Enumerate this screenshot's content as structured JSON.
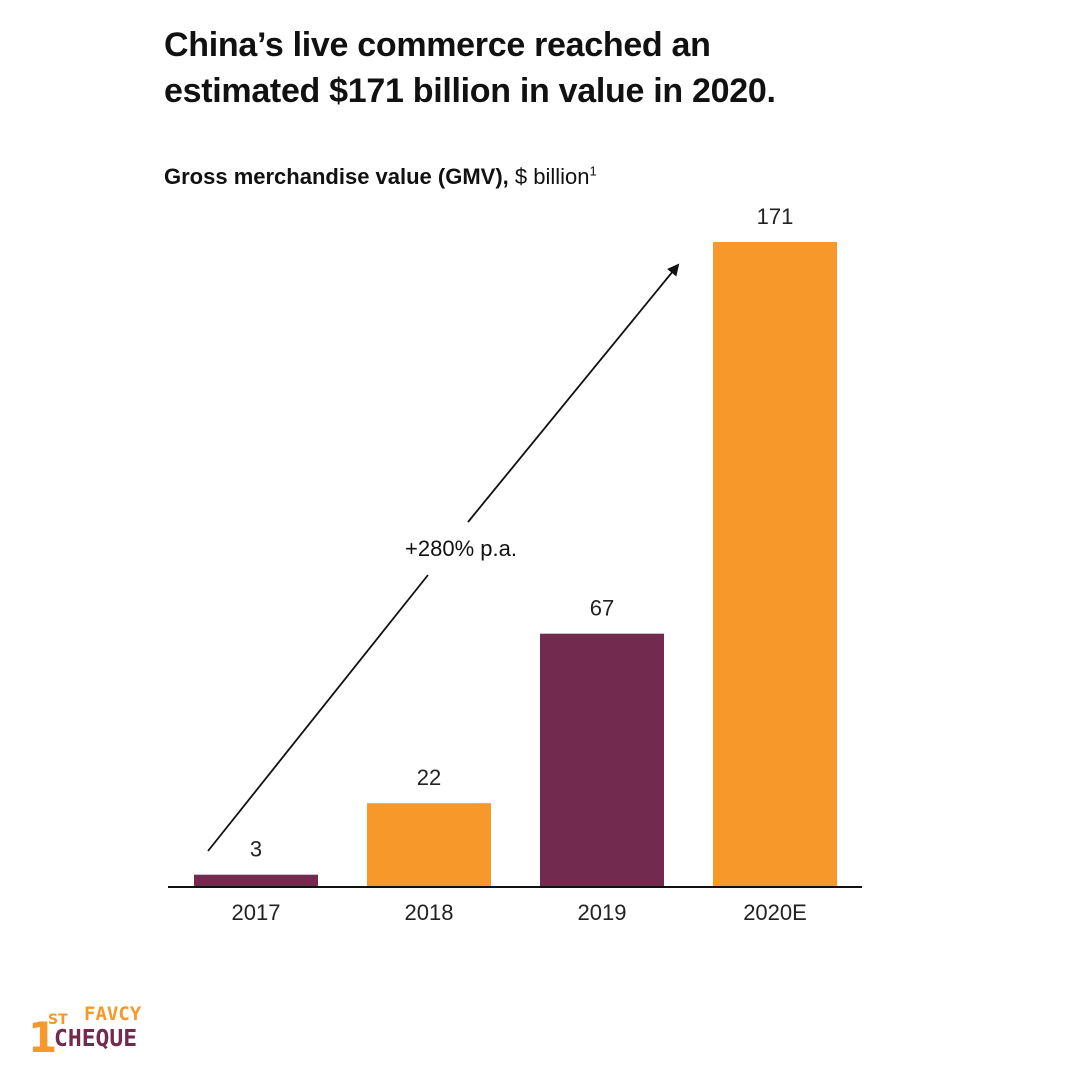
{
  "header": {
    "title_line1": "China’s live commerce reached an",
    "title_line2": "estimated $171 billion in value in 2020."
  },
  "subtitle": {
    "bold": "Gross merchandise value (GMV),",
    "regular": "$ billion",
    "footnote_marker": "1"
  },
  "chart_data": {
    "type": "bar",
    "title": "China’s live commerce reached an estimated $171 billion in value in 2020.",
    "ylabel": "Gross merchandise value (GMV), $ billion",
    "categories": [
      "2017",
      "2018",
      "2019",
      "2020E"
    ],
    "values": [
      3,
      22,
      67,
      171
    ],
    "value_labels": [
      "3",
      "22",
      "67",
      "171"
    ],
    "bar_colors": [
      "#732a4f",
      "#f7992a",
      "#732a4f",
      "#f7992a"
    ],
    "annotation": "+280% p.a.",
    "ylim": [
      0,
      171
    ],
    "grid": false,
    "legend": "none"
  },
  "logo": {
    "prefix_number": "1",
    "prefix_suffix": "ST",
    "word_top": "FAVCY",
    "word_bottom": "CHEQUE",
    "colors": {
      "orange": "#f7992a",
      "purple": "#732a4f"
    }
  }
}
